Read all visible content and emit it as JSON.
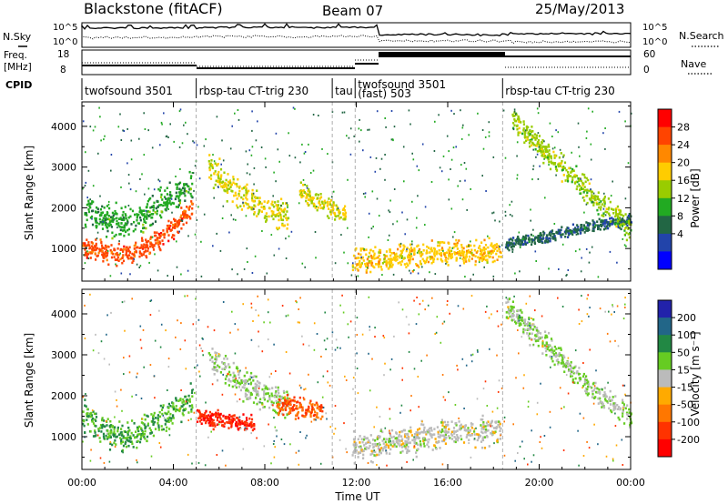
{
  "header": {
    "station": "Blackstone (fitACF)",
    "beam": "Beam 07",
    "date": "25/May/2013"
  },
  "left_labels": {
    "nsky": "N.Sky",
    "freq": "Freq.",
    "freq_unit": "[MHz]",
    "cpid": "CPID"
  },
  "right_labels": {
    "nsearch": "N.Search",
    "nave": "Nave"
  },
  "noise_axis": {
    "left_ticks": [
      "10^5",
      "10^0"
    ],
    "right_ticks": [
      "10^5",
      "10^0"
    ]
  },
  "freq_axis": {
    "left_ticks": [
      "18",
      "8"
    ],
    "right_ticks": [
      "60",
      "0"
    ]
  },
  "cpid_segments": [
    {
      "label": "twofsound 3501",
      "start": 0.0,
      "end": 5.0
    },
    {
      "label": "rbsp-tau CT-trig 230",
      "start": 5.0,
      "end": 10.95
    },
    {
      "label": "tau",
      "start": 10.95,
      "end": 11.95
    },
    {
      "label": "twofsound 3501",
      "label2": "(fast) 503",
      "start": 11.95,
      "end": 18.4
    },
    {
      "label": "rbsp-tau CT-trig 230",
      "start": 18.4,
      "end": 24.0
    }
  ],
  "power_colorbar": {
    "label": "Power [dB]",
    "ticks": [
      "28",
      "24",
      "20",
      "16",
      "12",
      "8",
      "4"
    ],
    "colors": [
      "#ff0000",
      "#ff4400",
      "#ff8800",
      "#ffcc00",
      "#99cc00",
      "#22aa22",
      "#226644",
      "#2244aa",
      "#0000ff"
    ]
  },
  "velocity_colorbar": {
    "label": "Velocity [m s⁻¹]",
    "ticks": [
      "200",
      "100",
      "50",
      "15",
      "-15",
      "-50",
      "-100",
      "-200"
    ],
    "colors": [
      "#2222aa",
      "#226688",
      "#228844",
      "#66cc22",
      "#bbbbbb",
      "#ffaa00",
      "#ff7700",
      "#ff3300",
      "#ff0000"
    ]
  },
  "chart_data": {
    "type": "heatmap",
    "xlabel": "Time UT",
    "ylabel": "Slant Range [km]",
    "xlim": [
      0,
      24
    ],
    "ylim": [
      200,
      4600
    ],
    "x_ticks": [
      "00:00",
      "04:00",
      "08:00",
      "12:00",
      "16:00",
      "20:00",
      "00:00"
    ],
    "y_ticks": [
      "1000",
      "2000",
      "3000",
      "4000"
    ],
    "panels": [
      {
        "name": "power",
        "unit": "dB",
        "scatter_bands": [
          {
            "x0": 0.0,
            "x1": 4.8,
            "y": [
              1000,
              950,
              900,
              850,
              900,
              1000,
              1150,
              1400,
              1700,
              2000
            ],
            "thickness": 350,
            "value": 26
          },
          {
            "x0": 0.0,
            "x1": 4.8,
            "y": [
              2000,
              1800,
              1700,
              1650,
              1700,
              1800,
              2000,
              2200,
              2400,
              2600
            ],
            "thickness": 500,
            "value": 12
          },
          {
            "x0": 5.5,
            "x1": 9.0,
            "y": [
              3000,
              2700,
              2400,
              2200,
              2000,
              1900,
              1850
            ],
            "thickness": 500,
            "value": 18
          },
          {
            "x0": 9.5,
            "x1": 11.5,
            "y": [
              2400,
              2200,
              2000,
              1800
            ],
            "thickness": 300,
            "value": 18
          },
          {
            "x0": 11.8,
            "x1": 18.3,
            "y": [
              700,
              750,
              800,
              850,
              900,
              900,
              950
            ],
            "thickness": 400,
            "value": 20
          },
          {
            "x0": 18.5,
            "x1": 24.0,
            "y": [
              1100,
              1200,
              1350,
              1500,
              1600,
              1700
            ],
            "thickness": 200,
            "value": 8
          },
          {
            "x0": 18.8,
            "x1": 24.0,
            "y": [
              4200,
              3700,
              3200,
              2800,
              2300,
              1900,
              1400
            ],
            "thickness": 400,
            "value": 16
          }
        ]
      },
      {
        "name": "velocity",
        "unit": "m/s",
        "scatter_bands": [
          {
            "x0": 0.0,
            "x1": 4.8,
            "y": [
              1500,
              1300,
              1100,
              1000,
              1100,
              1300,
              1500,
              1700,
              1900
            ],
            "thickness": 500,
            "value": 50
          },
          {
            "x0": 5.5,
            "x1": 9.0,
            "y": [
              3000,
              2700,
              2400,
              2200,
              2000,
              1900,
              1850
            ],
            "thickness": 500,
            "value": 15
          },
          {
            "x0": 8.5,
            "x1": 10.5,
            "y": [
              1800,
              1700,
              1650
            ],
            "thickness": 350,
            "value": -100
          },
          {
            "x0": 5.0,
            "x1": 7.5,
            "y": [
              1500,
              1400,
              1300
            ],
            "thickness": 300,
            "value": -200
          },
          {
            "x0": 11.8,
            "x1": 18.3,
            "y": [
              700,
              800,
              900,
              1000,
              1100,
              1150,
              1200
            ],
            "thickness": 500,
            "value": 0
          },
          {
            "x0": 18.5,
            "x1": 24.0,
            "y": [
              4200,
              3700,
              3200,
              2700,
              2200,
              1800,
              1500
            ],
            "thickness": 400,
            "value": 15
          }
        ]
      }
    ]
  }
}
